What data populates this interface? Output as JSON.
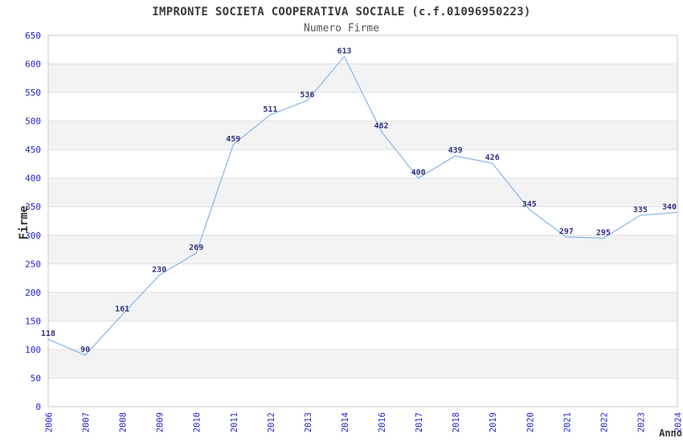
{
  "chart_data": {
    "type": "line",
    "title": "IMPRONTE SOCIETA COOPERATIVA SOCIALE (c.f.01096950223)",
    "subtitle": "Numero Firme",
    "xlabel": "Anno",
    "ylabel": "Firme",
    "categories": [
      "2006",
      "2007",
      "2008",
      "2009",
      "2010",
      "2011",
      "2012",
      "2013",
      "2014",
      "2016",
      "2017",
      "2018",
      "2019",
      "2020",
      "2021",
      "2022",
      "2023",
      "2024"
    ],
    "values": [
      118,
      90,
      161,
      230,
      269,
      459,
      511,
      536,
      613,
      482,
      400,
      439,
      426,
      345,
      297,
      295,
      335,
      340
    ],
    "ylim": [
      0,
      650
    ],
    "ytick_step": 50,
    "grid": "horizontal alternating bands every 50 units",
    "legend_position": "none",
    "colors": {
      "line": "#85b4e8",
      "value_label": "#32327e",
      "tick_label": "#2323cb",
      "band": "#f3f3f3",
      "gridline": "#e0e0e0",
      "plot_border": "#c9c9c9",
      "plot_background": "#ffffff",
      "title": "#3a3a3a",
      "subtitle": "#555555",
      "axis_title": "#333333"
    }
  }
}
